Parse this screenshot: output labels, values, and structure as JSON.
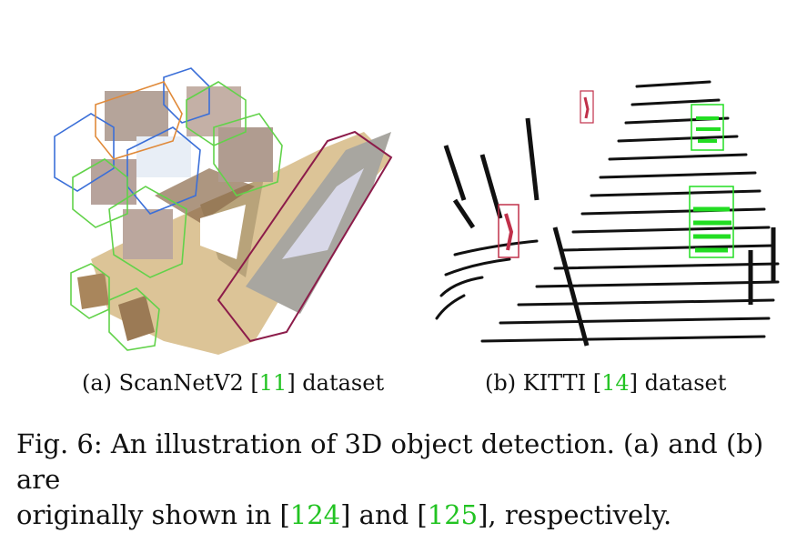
{
  "figure": {
    "subfigures": [
      {
        "id": "a",
        "prefix": "(a) ScanNetV2 [",
        "cite": "11",
        "suffix": "] dataset"
      },
      {
        "id": "b",
        "prefix": "(b) KITTI [",
        "cite": "14",
        "suffix": "] dataset"
      }
    ],
    "caption": {
      "line1": "Fig. 6:  An illustration of 3D object detection. (a) and (b) are",
      "line2_prefix": "originally shown in [",
      "cite1": "124",
      "line2_middle": "] and [",
      "cite2": "125",
      "line2_suffix": "], respectively."
    },
    "colors": {
      "citation": "#22c322",
      "box_blue": "#3b6fd8",
      "box_green": "#62d24a",
      "box_orange": "#e08a3a",
      "box_maroon": "#8c1c4a",
      "box_red": "#c0304a",
      "lidar_green": "#22dd22",
      "point_black": "#111111"
    }
  }
}
